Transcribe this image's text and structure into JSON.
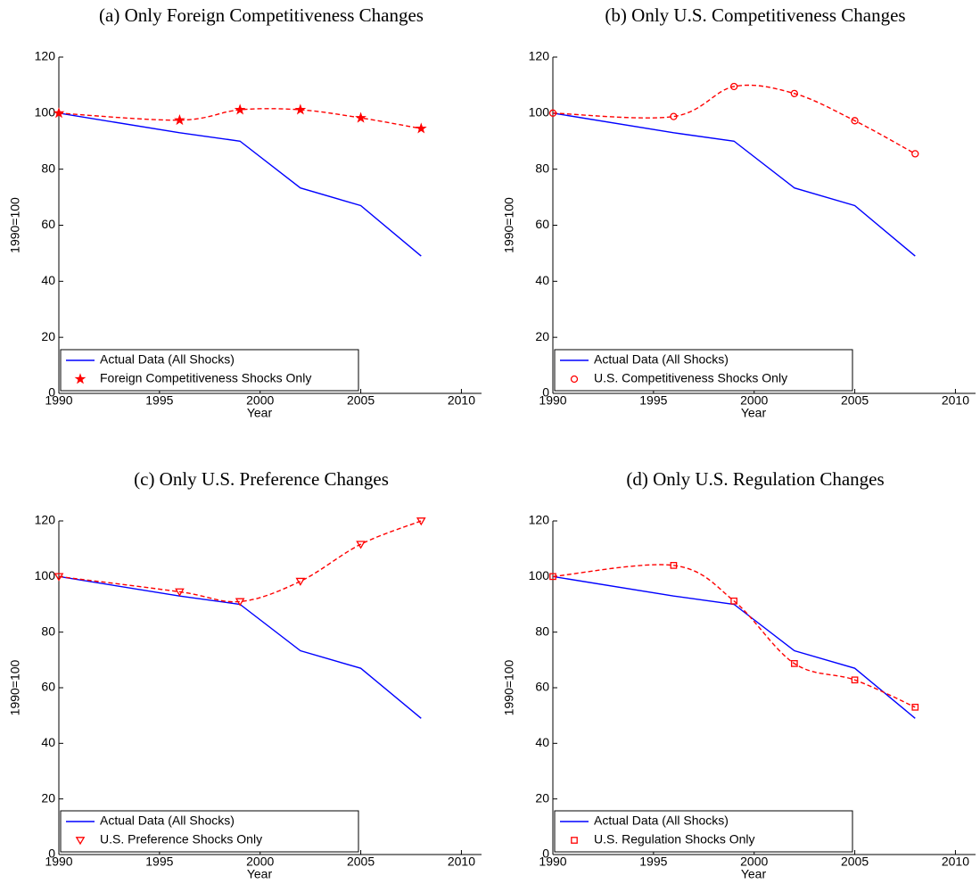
{
  "chart_data": [
    {
      "type": "line",
      "title": "(a) Only Foreign Competitiveness Changes",
      "xlabel": "Year",
      "ylabel": "1990=100",
      "xlim": [
        1990,
        2011
      ],
      "ylim": [
        0,
        120
      ],
      "xticks": [
        1990,
        1995,
        2000,
        2005,
        2010
      ],
      "yticks": [
        0,
        20,
        40,
        60,
        80,
        100,
        120
      ],
      "grid": false,
      "legend": "lower left",
      "x": [
        1990,
        1996,
        1999,
        2002,
        2005,
        2008
      ],
      "series": [
        {
          "name": "Actual Data (All Shocks)",
          "color": "#0000ff",
          "style": "solid",
          "values": [
            100,
            93,
            90,
            73.3,
            67,
            49
          ]
        },
        {
          "name": "Foreign Competitiveness Shocks Only",
          "color": "#ff0000",
          "style": "dashed",
          "marker": "star",
          "smooth": true,
          "values": [
            100,
            97.5,
            101.2,
            101.2,
            98.3,
            94.5
          ]
        }
      ]
    },
    {
      "type": "line",
      "title": "(b) Only U.S. Competitiveness Changes",
      "xlabel": "Year",
      "ylabel": "1990=100",
      "xlim": [
        1990,
        2011
      ],
      "ylim": [
        0,
        120
      ],
      "xticks": [
        1990,
        1995,
        2000,
        2005,
        2010
      ],
      "yticks": [
        0,
        20,
        40,
        60,
        80,
        100,
        120
      ],
      "grid": false,
      "legend": "lower left",
      "x": [
        1990,
        1996,
        1999,
        2002,
        2005,
        2008
      ],
      "series": [
        {
          "name": "Actual Data (All Shocks)",
          "color": "#0000ff",
          "style": "solid",
          "values": [
            100,
            93,
            90,
            73.3,
            67,
            49
          ]
        },
        {
          "name": "U.S. Competitiveness Shocks Only",
          "color": "#ff0000",
          "style": "dashed",
          "marker": "circle",
          "smooth": true,
          "values": [
            100,
            98.8,
            109.5,
            107,
            97.3,
            85.5
          ]
        }
      ]
    },
    {
      "type": "line",
      "title": "(c) Only U.S. Preference Changes",
      "xlabel": "Year",
      "ylabel": "1990=100",
      "xlim": [
        1990,
        2011
      ],
      "ylim": [
        0,
        120
      ],
      "xticks": [
        1990,
        1995,
        2000,
        2005,
        2010
      ],
      "yticks": [
        0,
        20,
        40,
        60,
        80,
        100,
        120
      ],
      "grid": false,
      "legend": "lower left",
      "x": [
        1990,
        1996,
        1999,
        2002,
        2005,
        2008
      ],
      "series": [
        {
          "name": "Actual Data (All Shocks)",
          "color": "#0000ff",
          "style": "solid",
          "values": [
            100,
            93,
            90,
            73.3,
            67,
            49
          ]
        },
        {
          "name": "U.S. Preference Shocks Only",
          "color": "#ff0000",
          "style": "dashed",
          "marker": "triangle-down",
          "smooth": true,
          "values": [
            100,
            94.5,
            91,
            98.3,
            111.6,
            120
          ]
        }
      ]
    },
    {
      "type": "line",
      "title": "(d) Only U.S. Regulation Changes",
      "xlabel": "Year",
      "ylabel": "1990=100",
      "xlim": [
        1990,
        2011
      ],
      "ylim": [
        0,
        120
      ],
      "xticks": [
        1990,
        1995,
        2000,
        2005,
        2010
      ],
      "yticks": [
        0,
        20,
        40,
        60,
        80,
        100,
        120
      ],
      "grid": false,
      "legend": "lower left",
      "x": [
        1990,
        1996,
        1999,
        2002,
        2005,
        2008
      ],
      "series": [
        {
          "name": "Actual Data (All Shocks)",
          "color": "#0000ff",
          "style": "solid",
          "values": [
            100,
            93,
            90,
            73.3,
            67,
            49
          ]
        },
        {
          "name": "U.S. Regulation Shocks Only",
          "color": "#ff0000",
          "style": "dashed",
          "marker": "square",
          "smooth": true,
          "values": [
            100,
            104,
            91.2,
            68.7,
            62.8,
            53
          ]
        }
      ]
    }
  ]
}
